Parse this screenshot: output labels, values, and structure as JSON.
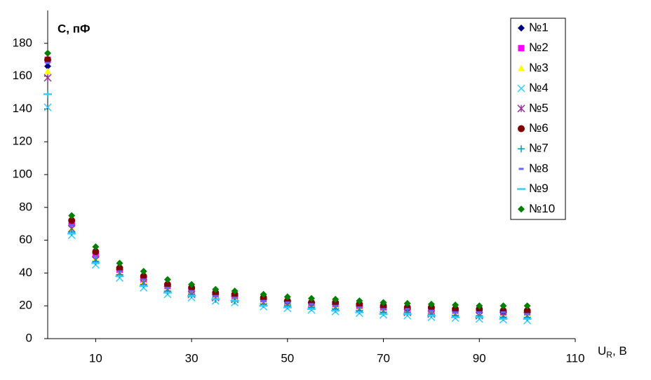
{
  "chart_data": {
    "type": "scatter",
    "y_label": "С, пФ",
    "x_label": "U",
    "x_label_sub": "R",
    "x_label_suffix": ", В",
    "x": [
      0,
      5,
      10,
      15,
      20,
      25,
      30,
      35,
      39,
      45,
      50,
      55,
      60,
      65,
      70,
      75,
      80,
      85,
      90,
      95,
      100
    ],
    "xlim": [
      0,
      110
    ],
    "xticks": [
      10,
      30,
      50,
      70,
      90,
      110
    ],
    "ylim": [
      0,
      200
    ],
    "yticks": [
      0,
      20,
      40,
      60,
      80,
      100,
      120,
      140,
      160,
      180
    ],
    "legend": "top-right",
    "series": [
      {
        "name": "№1",
        "color": "#000080",
        "marker": "diamond",
        "values": [
          166,
          70,
          52,
          42,
          37,
          32,
          30,
          27,
          26,
          24,
          23,
          22,
          21,
          20,
          19,
          18,
          18,
          17,
          17,
          17,
          16
        ]
      },
      {
        "name": "№2",
        "color": "#ff00ff",
        "marker": "square",
        "values": [
          170,
          70,
          51,
          42,
          36,
          32,
          29,
          27,
          26,
          24,
          22,
          21,
          21,
          20,
          19,
          18,
          17,
          17,
          17,
          16,
          16
        ]
      },
      {
        "name": "№3",
        "color": "#ffff00",
        "marker": "triangle",
        "values": [
          163,
          67,
          49,
          40,
          35,
          30,
          28,
          25,
          24,
          22,
          21,
          20,
          19,
          18,
          17,
          17,
          16,
          15,
          15,
          14,
          14
        ]
      },
      {
        "name": "№4",
        "color": "#33ccff",
        "marker": "x",
        "values": [
          141,
          63,
          45,
          37,
          31,
          27,
          25,
          23,
          22,
          19.5,
          18.5,
          17.5,
          16.5,
          15.5,
          14.5,
          14,
          13,
          12.5,
          12,
          11.5,
          11
        ]
      },
      {
        "name": "№5",
        "color": "#993399",
        "marker": "star",
        "values": [
          159,
          67,
          48,
          40,
          34,
          30,
          27,
          25,
          24,
          22,
          21,
          20,
          19,
          18,
          17,
          16,
          15,
          15,
          14,
          14,
          14
        ]
      },
      {
        "name": "№6",
        "color": "#800000",
        "marker": "circle",
        "values": [
          170,
          72,
          53,
          43,
          38,
          33,
          31,
          28,
          27,
          25,
          23,
          22,
          22,
          21,
          20,
          19,
          19,
          18,
          18,
          17,
          17
        ]
      },
      {
        "name": "№7",
        "color": "#0099cc",
        "marker": "plus",
        "values": [
          149,
          65,
          47,
          39,
          33,
          29,
          27,
          24,
          23,
          21,
          20,
          19,
          18,
          17,
          16,
          16,
          15,
          14,
          14,
          13,
          13
        ]
      },
      {
        "name": "№8",
        "color": "#6666ff",
        "marker": "dash",
        "values": [
          168,
          69,
          50,
          41,
          36,
          31,
          29,
          26,
          25,
          23,
          22,
          21,
          20,
          19,
          18,
          18,
          17,
          16,
          16,
          16,
          15
        ]
      },
      {
        "name": "№9",
        "color": "#33ccff",
        "marker": "line",
        "values": [
          149,
          64,
          46,
          38,
          32,
          28,
          26,
          24,
          23,
          20,
          19,
          18,
          17,
          16,
          15,
          15,
          14,
          13,
          13,
          12,
          12
        ]
      },
      {
        "name": "№10",
        "color": "#008000",
        "marker": "diamond",
        "values": [
          174,
          75,
          56,
          46,
          41,
          36,
          33,
          30,
          29,
          27,
          25.5,
          24.5,
          24,
          23,
          22,
          21.5,
          21,
          20.5,
          20,
          20,
          20
        ]
      }
    ]
  }
}
